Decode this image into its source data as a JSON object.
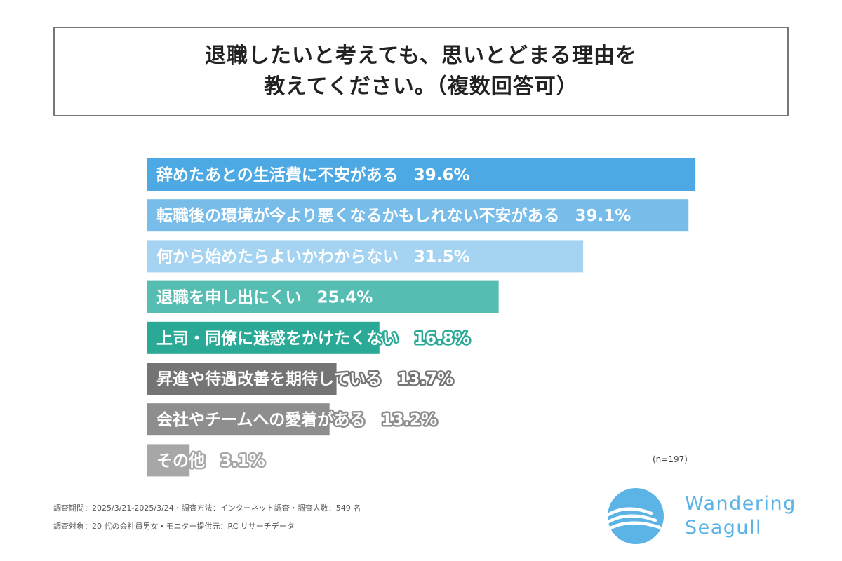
{
  "title": {
    "line1": "退職したいと考えても、思いとどまる理由を",
    "line2": "教えてください。（複数回答可）"
  },
  "chart_data": {
    "type": "bar",
    "orientation": "horizontal",
    "categories": [
      "辞めたあとの生活費に不安がある",
      "転職後の環境が今より悪くなるかもしれない不安がある",
      "何から始めたらよいかわからない",
      "退職を申し出にくい",
      "上司・同僚に迷惑をかけたくない",
      "昇進や待遇改善を期待している",
      "会社やチームへの愛着がある",
      "その他"
    ],
    "values": [
      39.6,
      39.1,
      31.5,
      25.4,
      16.8,
      13.7,
      13.2,
      3.1
    ],
    "value_labels": [
      "39.6%",
      "39.1%",
      "31.5%",
      "25.4%",
      "16.8%",
      "13.7%",
      "13.2%",
      "3.1%"
    ],
    "bar_colors": [
      "#4da9e4",
      "#78bdea",
      "#a4d4f2",
      "#56bdb2",
      "#2aaa96",
      "#747474",
      "#8e8e8e",
      "#a7a7a7"
    ],
    "xlim": [
      0,
      40
    ],
    "grid": false,
    "legend": "none"
  },
  "sample_size": "(n=197)",
  "footnotes": {
    "line1": "調査期間：2025/3/21-2025/3/24・調査方法：インターネット調査・調査人数：549 名",
    "line2": "調査対象：20 代の会社員男女・モニター提供元：RC リサーチデータ"
  },
  "logo": {
    "line1": "Wandering",
    "line2": "Seagull",
    "color": "#5bb3e6",
    "icon": "wave-circle-icon"
  }
}
